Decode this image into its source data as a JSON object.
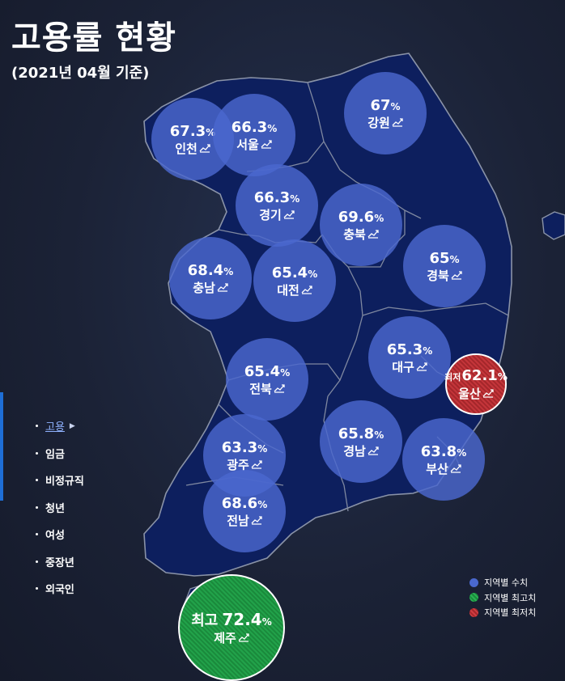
{
  "header": {
    "title": "고용률 현황",
    "subtitle": "(2021년 04월 기준)"
  },
  "map": {
    "land_color": "#0d1f5e",
    "border_color": "#8a93a8",
    "regions": [
      {
        "name": "인천",
        "value": "67.3",
        "unit": "%",
        "kind": "normal"
      },
      {
        "name": "서울",
        "value": "66.3",
        "unit": "%",
        "kind": "normal"
      },
      {
        "name": "강원",
        "value": "67",
        "unit": "%",
        "kind": "normal"
      },
      {
        "name": "경기",
        "value": "66.3",
        "unit": "%",
        "kind": "normal"
      },
      {
        "name": "충북",
        "value": "69.6",
        "unit": "%",
        "kind": "normal"
      },
      {
        "name": "충남",
        "value": "68.4",
        "unit": "%",
        "kind": "normal"
      },
      {
        "name": "대전",
        "value": "65.4",
        "unit": "%",
        "kind": "normal"
      },
      {
        "name": "경북",
        "value": "65",
        "unit": "%",
        "kind": "normal"
      },
      {
        "name": "대구",
        "value": "65.3",
        "unit": "%",
        "kind": "normal"
      },
      {
        "name": "울산",
        "value": "62.1",
        "unit": "%",
        "kind": "low",
        "tag": "최저"
      },
      {
        "name": "전북",
        "value": "65.4",
        "unit": "%",
        "kind": "normal"
      },
      {
        "name": "경남",
        "value": "65.8",
        "unit": "%",
        "kind": "normal"
      },
      {
        "name": "광주",
        "value": "63.3",
        "unit": "%",
        "kind": "normal"
      },
      {
        "name": "부산",
        "value": "63.8",
        "unit": "%",
        "kind": "normal"
      },
      {
        "name": "전남",
        "value": "68.6",
        "unit": "%",
        "kind": "normal"
      },
      {
        "name": "제주",
        "value": "72.4",
        "unit": "%",
        "kind": "high",
        "tag": "최고"
      }
    ]
  },
  "nav": {
    "items": [
      {
        "label": "고용",
        "active": true
      },
      {
        "label": "임금"
      },
      {
        "label": "비정규직"
      },
      {
        "label": "청년"
      },
      {
        "label": "여성"
      },
      {
        "label": "중장년"
      },
      {
        "label": "외국인"
      }
    ]
  },
  "legend": {
    "items": [
      {
        "label": "지역별 수치",
        "color": "#4a68ce"
      },
      {
        "label": "지역별 최고치",
        "color": "#22a24a"
      },
      {
        "label": "지역별 최저치",
        "color": "#c4353a"
      }
    ]
  }
}
